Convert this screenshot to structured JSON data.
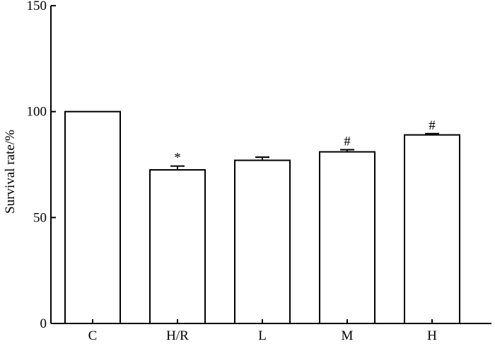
{
  "chart_data": {
    "type": "bar",
    "categories": [
      "C",
      "H/R",
      "L",
      "M",
      "H"
    ],
    "values": [
      100,
      72.5,
      77,
      81,
      89
    ],
    "errors": [
      0,
      1.8,
      1.5,
      1.0,
      0.6
    ],
    "annotations": [
      "",
      "*",
      "",
      "#",
      "#"
    ],
    "title": "",
    "xlabel": "",
    "ylabel": "Survival rate/%",
    "ylim": [
      0,
      150
    ],
    "yticks": [
      0,
      50,
      100,
      150
    ],
    "grid": false,
    "legend": "none",
    "colors": {
      "bar_fill": "#ffffff",
      "stroke": "#000000"
    }
  }
}
